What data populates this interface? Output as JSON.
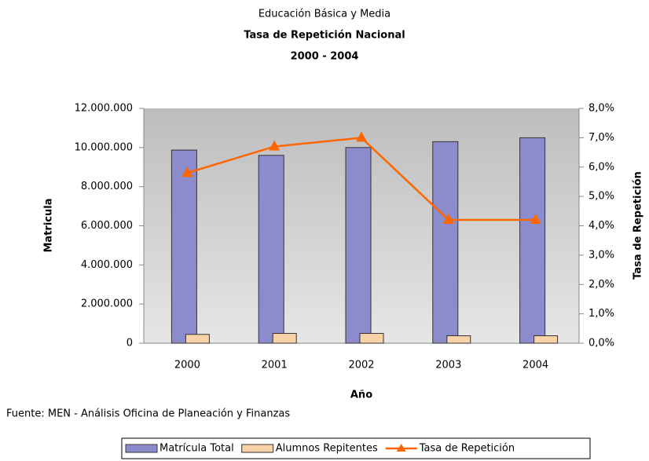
{
  "chart_data": {
    "type": "bar",
    "titles": [
      "Educación Básica y Media",
      "Tasa de Repetición Nacional",
      "2000 - 2004"
    ],
    "xlabel": "Año",
    "ylabel": "Matricula",
    "y2label": "Tasa de Repetición",
    "source": "Fuente: MEN - Análisis Oficina de Planeación y Finanzas",
    "categories": [
      "2000",
      "2001",
      "2002",
      "2003",
      "2004"
    ],
    "series": [
      {
        "name": "Matrícula Total",
        "type": "bar",
        "color": "#8c8ccc",
        "values": [
          9870000,
          9600000,
          10000000,
          10300000,
          10500000
        ]
      },
      {
        "name": "Alumnos Repitentes",
        "type": "bar",
        "color": "#f9d2a8",
        "values": [
          450000,
          500000,
          500000,
          380000,
          380000
        ]
      },
      {
        "name": "Tasa de Repetición",
        "type": "line",
        "axis": "y2",
        "color": "#ff6600",
        "values": [
          5.8,
          6.7,
          7.0,
          4.2,
          4.2
        ]
      }
    ],
    "ylim": [
      0,
      12000000
    ],
    "yticks": [
      0,
      {
        "value": 2000000,
        "label": "2.000.000"
      },
      {
        "value": 4000000,
        "label": "4.000.000"
      },
      {
        "value": 6000000,
        "label": "6.000.000"
      },
      {
        "value": 8000000,
        "label": "8.000.000"
      },
      {
        "value": 10000000,
        "label": "10.000.000"
      },
      {
        "value": 12000000,
        "label": "12.000.000"
      }
    ],
    "y2lim": [
      0,
      8
    ],
    "y2ticks": [
      {
        "value": 0,
        "label": "0,0%"
      },
      {
        "value": 1,
        "label": "1,0%"
      },
      {
        "value": 2,
        "label": "2,0%"
      },
      {
        "value": 3,
        "label": "3,0%"
      },
      {
        "value": 4,
        "label": "4,0%"
      },
      {
        "value": 5,
        "label": "5,0%"
      },
      {
        "value": 6,
        "label": "6,0%"
      },
      {
        "value": 7,
        "label": "7,0%"
      },
      {
        "value": 8,
        "label": "8,0%"
      }
    ],
    "legend": "bottom"
  }
}
